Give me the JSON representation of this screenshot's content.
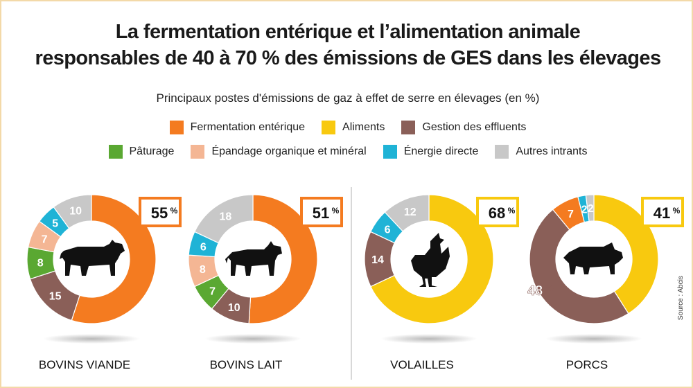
{
  "title_line1": "La fermentation entérique et l’alimentation animale",
  "title_line2": "responsables de 40 à 70 % des émissions de GES dans les élevages",
  "subtitle": "Principaux postes d'émissions de gaz à effet de serre en élevages (en %)",
  "legend": [
    {
      "key": "fermentation",
      "label": "Fermentation entérique",
      "color": "#f47b20"
    },
    {
      "key": "aliments",
      "label": "Aliments",
      "color": "#f8c90f"
    },
    {
      "key": "effluents",
      "label": "Gestion des effluents",
      "color": "#8a5f58"
    },
    {
      "key": "paturage",
      "label": "Pâturage",
      "color": "#5aa832"
    },
    {
      "key": "epandage",
      "label": "Épandage organique et minéral",
      "color": "#f4b694"
    },
    {
      "key": "energie",
      "label": "Énergie directe",
      "color": "#1fb3d6"
    },
    {
      "key": "autres",
      "label": "Autres intrants",
      "color": "#c8c8c8"
    }
  ],
  "source": "Source : Abcis",
  "chart_data": [
    {
      "type": "pie",
      "name": "BOVINS VIANDE",
      "animal_icon": "cow-icon",
      "highlight": {
        "value": "55",
        "unit": "%",
        "color": "#f47b20"
      },
      "slices": [
        {
          "key": "fermentation",
          "value": 55,
          "label": ""
        },
        {
          "key": "effluents",
          "value": 15,
          "label": "15"
        },
        {
          "key": "paturage",
          "value": 8,
          "label": "8"
        },
        {
          "key": "epandage",
          "value": 7,
          "label": "7"
        },
        {
          "key": "energie",
          "value": 5,
          "label": "5"
        },
        {
          "key": "autres",
          "value": 10,
          "label": "10"
        }
      ]
    },
    {
      "type": "pie",
      "name": "BOVINS LAIT",
      "animal_icon": "dairy-cow-icon",
      "highlight": {
        "value": "51",
        "unit": "%",
        "color": "#f47b20"
      },
      "slices": [
        {
          "key": "fermentation",
          "value": 51,
          "label": ""
        },
        {
          "key": "effluents",
          "value": 10,
          "label": "10"
        },
        {
          "key": "paturage",
          "value": 7,
          "label": "7"
        },
        {
          "key": "epandage",
          "value": 8,
          "label": "8"
        },
        {
          "key": "energie",
          "value": 6,
          "label": "6"
        },
        {
          "key": "autres",
          "value": 18,
          "label": "18"
        }
      ]
    },
    {
      "type": "pie",
      "name": "VOLAILLES",
      "animal_icon": "hen-icon",
      "highlight": {
        "value": "68",
        "unit": "%",
        "color": "#f8c90f"
      },
      "slices": [
        {
          "key": "aliments",
          "value": 68,
          "label": ""
        },
        {
          "key": "effluents",
          "value": 14,
          "label": "14"
        },
        {
          "key": "energie",
          "value": 6,
          "label": "6"
        },
        {
          "key": "autres",
          "value": 12,
          "label": "12"
        }
      ]
    },
    {
      "type": "pie",
      "name": "PORCS",
      "animal_icon": "pig-icon",
      "highlight": {
        "value": "41",
        "unit": "%",
        "color": "#f8c90f"
      },
      "outer_label": {
        "value": "48",
        "unit": "%"
      },
      "slices": [
        {
          "key": "aliments",
          "value": 41,
          "label": ""
        },
        {
          "key": "effluents",
          "value": 48,
          "label": ""
        },
        {
          "key": "fermentation",
          "value": 7,
          "label": "7"
        },
        {
          "key": "energie",
          "value": 2,
          "label": "2"
        },
        {
          "key": "autres",
          "value": 2,
          "label": "2"
        }
      ]
    }
  ]
}
